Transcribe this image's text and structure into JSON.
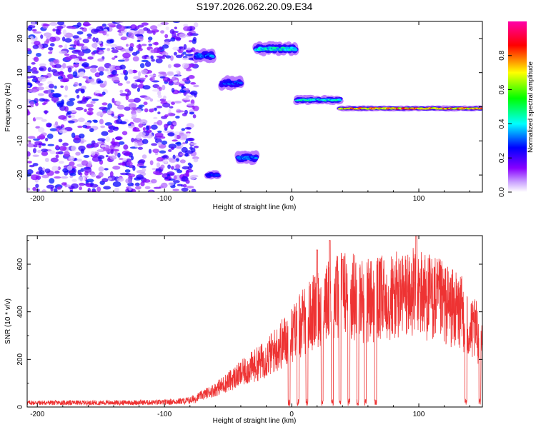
{
  "title": "S197.2026.062.20.09.E34",
  "colors": {
    "snr_line": "#ee3333",
    "frame": "#000000",
    "background": "#ffffff"
  },
  "chart_data": [
    {
      "type": "heatmap",
      "subtype": "spectrogram",
      "xlabel": "Height of straight line (km)",
      "ylabel": "Frequency (Hz)",
      "xlim": [
        -208,
        150
      ],
      "ylim": [
        -25,
        25
      ],
      "xticks": [
        -200,
        -100,
        0,
        100
      ],
      "yticks": [
        -20,
        -10,
        0,
        10,
        20
      ],
      "colorbar": {
        "label": "Normalized spectral amplitude",
        "range": [
          0,
          1
        ],
        "ticks": [
          "0.0",
          "0.2",
          "0.4",
          "0.6",
          "0.8"
        ],
        "stops": [
          "#ffffff",
          "#8800ff",
          "#0000ff",
          "#00ffff",
          "#00ff00",
          "#ffff00",
          "#ff0000",
          "#ff00aa"
        ]
      },
      "ridges": [
        {
          "x_start": -208,
          "x_end": -75,
          "freq": 0,
          "spread": 25,
          "amplitude": 0.2,
          "note": "scattered noise"
        },
        {
          "x_start": -75,
          "x_end": -62,
          "freq": 15,
          "spread": 3,
          "amplitude": 0.35
        },
        {
          "x_start": -66,
          "x_end": -58,
          "freq": -20,
          "spread": 2,
          "amplitude": 0.3
        },
        {
          "x_start": -55,
          "x_end": -40,
          "freq": 7,
          "spread": 3,
          "amplitude": 0.3
        },
        {
          "x_start": -42,
          "x_end": -28,
          "freq": -15,
          "spread": 3,
          "amplitude": 0.35
        },
        {
          "x_start": -28,
          "x_end": 3,
          "freq": 17,
          "spread": 3,
          "amplitude": 0.45
        },
        {
          "x_start": 4,
          "x_end": 38,
          "freq": 2,
          "spread": 2,
          "amplitude": 0.45
        },
        {
          "x_start": 38,
          "x_end": 150,
          "freq": -0.5,
          "spread": 1,
          "amplitude": 0.85
        }
      ]
    },
    {
      "type": "line",
      "xlabel": "Height of straight line (km)",
      "ylabel": "SNR (10 * v/v)",
      "xlim": [
        -208,
        150
      ],
      "ylim": [
        0,
        720
      ],
      "xticks": [
        -200,
        -100,
        0,
        100
      ],
      "yticks": [
        0,
        200,
        400,
        600
      ],
      "series": [
        {
          "name": "SNR",
          "envelope": [
            [
              -208,
              20
            ],
            [
              -150,
              20
            ],
            [
              -100,
              22
            ],
            [
              -80,
              30
            ],
            [
              -60,
              80
            ],
            [
              -40,
              150
            ],
            [
              -20,
              220
            ],
            [
              0,
              330
            ],
            [
              20,
              450
            ],
            [
              40,
              520
            ],
            [
              60,
              480
            ],
            [
              80,
              500
            ],
            [
              100,
              520
            ],
            [
              120,
              470
            ],
            [
              135,
              420
            ],
            [
              140,
              340
            ],
            [
              145,
              350
            ],
            [
              150,
              280
            ]
          ],
          "peaks": [
            [
              30,
              700
            ],
            [
              98,
              720
            ],
            [
              20,
              660
            ],
            [
              40,
              620
            ]
          ],
          "dropouts": [
            -2,
            5,
            12,
            24,
            32,
            38,
            45,
            52,
            58,
            66,
            137,
            148
          ]
        }
      ]
    }
  ]
}
